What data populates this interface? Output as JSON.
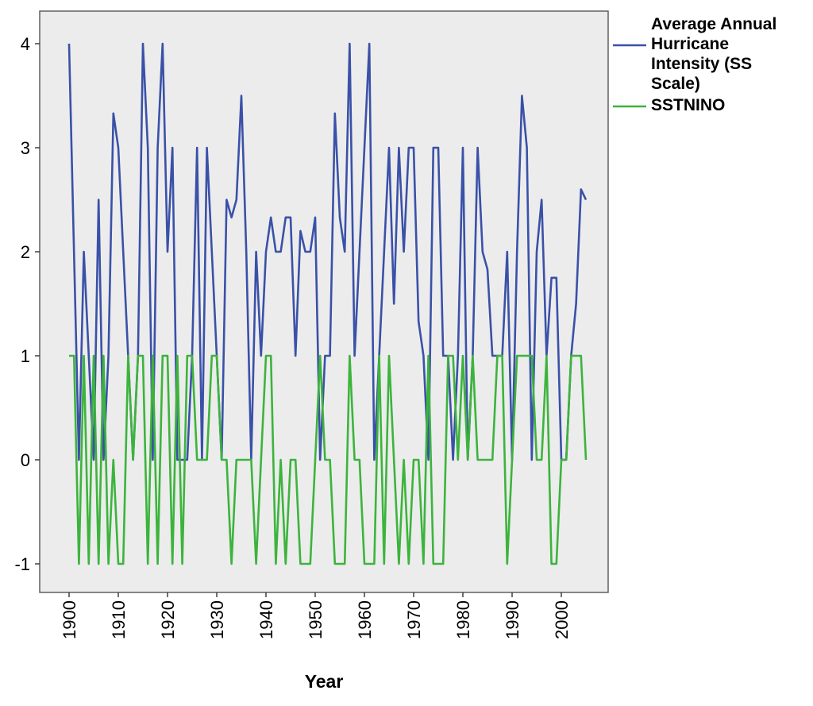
{
  "chart_data": {
    "type": "line",
    "title": "",
    "xlabel": "Year",
    "ylabel": "",
    "xlim": [
      1896,
      2008
    ],
    "ylim": [
      -1.3,
      4.3
    ],
    "grid": false,
    "legend_position": "right",
    "x_ticks": [
      1900,
      1910,
      1920,
      1930,
      1940,
      1950,
      1960,
      1970,
      1980,
      1990,
      2000
    ],
    "x_tick_labels": [
      "1900",
      "1910",
      "1920",
      "1930",
      "1940",
      "1950",
      "1960",
      "1970",
      "1980",
      "1990",
      "2000"
    ],
    "y_ticks": [
      -1,
      0,
      1,
      2,
      3,
      4
    ],
    "y_tick_labels": [
      "-1",
      "0",
      "1",
      "2",
      "3",
      "4"
    ],
    "legend": [
      {
        "lines": [
          "Average Annual",
          "Hurricane",
          "Intensity (SS",
          "Scale)"
        ],
        "color": "#3a51a8"
      },
      {
        "lines": [
          "SSTNINO"
        ],
        "color": "#3cb43c"
      }
    ],
    "series": [
      {
        "name": "Average Annual Hurricane Intensity (SS Scale)",
        "color": "#3a51a8",
        "x": [
          1900,
          1901,
          1902,
          1903,
          1904,
          1905,
          1906,
          1907,
          1908,
          1909,
          1910,
          1911,
          1912,
          1913,
          1914,
          1915,
          1916,
          1917,
          1918,
          1919,
          1920,
          1921,
          1922,
          1923,
          1924,
          1925,
          1926,
          1927,
          1928,
          1929,
          1930,
          1931,
          1932,
          1933,
          1934,
          1935,
          1936,
          1937,
          1938,
          1939,
          1940,
          1941,
          1942,
          1943,
          1944,
          1945,
          1946,
          1947,
          1948,
          1949,
          1950,
          1951,
          1952,
          1953,
          1954,
          1955,
          1956,
          1957,
          1958,
          1959,
          1960,
          1961,
          1962,
          1963,
          1964,
          1965,
          1966,
          1967,
          1968,
          1969,
          1970,
          1971,
          1972,
          1973,
          1974,
          1975,
          1976,
          1977,
          1978,
          1979,
          1980,
          1981,
          1982,
          1983,
          1984,
          1985,
          1986,
          1987,
          1988,
          1989,
          1990,
          1991,
          1992,
          1993,
          1994,
          1995,
          1996,
          1997,
          1998,
          1999,
          2000,
          2001,
          2002,
          2003,
          2004,
          2005
        ],
        "values": [
          4,
          2,
          0,
          2,
          1,
          0,
          2.5,
          0,
          1,
          3.33,
          3,
          2,
          1,
          0,
          1,
          4,
          3,
          0,
          3,
          4,
          2,
          3,
          0,
          0,
          0,
          1,
          3,
          0,
          3,
          2,
          1,
          0,
          2.5,
          2.33,
          2.5,
          3.5,
          2,
          0,
          2,
          1,
          2,
          2.33,
          2,
          2,
          2.33,
          2.33,
          1,
          2.2,
          2,
          2,
          2.33,
          0,
          1,
          1,
          3.33,
          2.33,
          2,
          4,
          1,
          2,
          3,
          4,
          0,
          1,
          2,
          3,
          1.5,
          3,
          2,
          3,
          3,
          1.33,
          1,
          0,
          3,
          3,
          1,
          1,
          0,
          1,
          3,
          0,
          1,
          3,
          2,
          1.83,
          1,
          1,
          1,
          2,
          0,
          2,
          3.5,
          3,
          0,
          2,
          2.5,
          1,
          1.75,
          1.75,
          0,
          0,
          1,
          1.5,
          2.6,
          2.5
        ]
      },
      {
        "name": "SSTNINO",
        "color": "#3cb43c",
        "x": [
          1900,
          1901,
          1902,
          1903,
          1904,
          1905,
          1906,
          1907,
          1908,
          1909,
          1910,
          1911,
          1912,
          1913,
          1914,
          1915,
          1916,
          1917,
          1918,
          1919,
          1920,
          1921,
          1922,
          1923,
          1924,
          1925,
          1926,
          1927,
          1928,
          1929,
          1930,
          1931,
          1932,
          1933,
          1934,
          1935,
          1936,
          1937,
          1938,
          1939,
          1940,
          1941,
          1942,
          1943,
          1944,
          1945,
          1946,
          1947,
          1948,
          1949,
          1950,
          1951,
          1952,
          1953,
          1954,
          1955,
          1956,
          1957,
          1958,
          1959,
          1960,
          1961,
          1962,
          1963,
          1964,
          1965,
          1966,
          1967,
          1968,
          1969,
          1970,
          1971,
          1972,
          1973,
          1974,
          1975,
          1976,
          1977,
          1978,
          1979,
          1980,
          1981,
          1982,
          1983,
          1984,
          1985,
          1986,
          1987,
          1988,
          1989,
          1990,
          1991,
          1992,
          1993,
          1994,
          1995,
          1996,
          1997,
          1998,
          1999,
          2000,
          2001,
          2002,
          2003,
          2004,
          2005
        ],
        "values": [
          1,
          1,
          -1,
          1,
          -1,
          1,
          -1,
          1,
          -1,
          0,
          -1,
          -1,
          1,
          0,
          1,
          1,
          -1,
          1,
          -1,
          1,
          1,
          -1,
          1,
          -1,
          1,
          1,
          0,
          0,
          0,
          1,
          1,
          0,
          0,
          -1,
          0,
          0,
          0,
          0,
          -1,
          0,
          1,
          1,
          -1,
          0,
          -1,
          0,
          0,
          -1,
          -1,
          -1,
          0,
          1,
          0,
          0,
          -1,
          -1,
          -1,
          1,
          0,
          0,
          -1,
          -1,
          -1,
          1,
          -1,
          1,
          0,
          -1,
          0,
          -1,
          0,
          0,
          -1,
          1,
          -1,
          -1,
          -1,
          1,
          1,
          0,
          1,
          0,
          1,
          0,
          0,
          0,
          0,
          1,
          1,
          -1,
          0,
          1,
          1,
          1,
          1,
          0,
          0,
          1,
          -1,
          -1,
          0,
          0,
          1,
          1,
          1,
          0
        ]
      }
    ]
  }
}
